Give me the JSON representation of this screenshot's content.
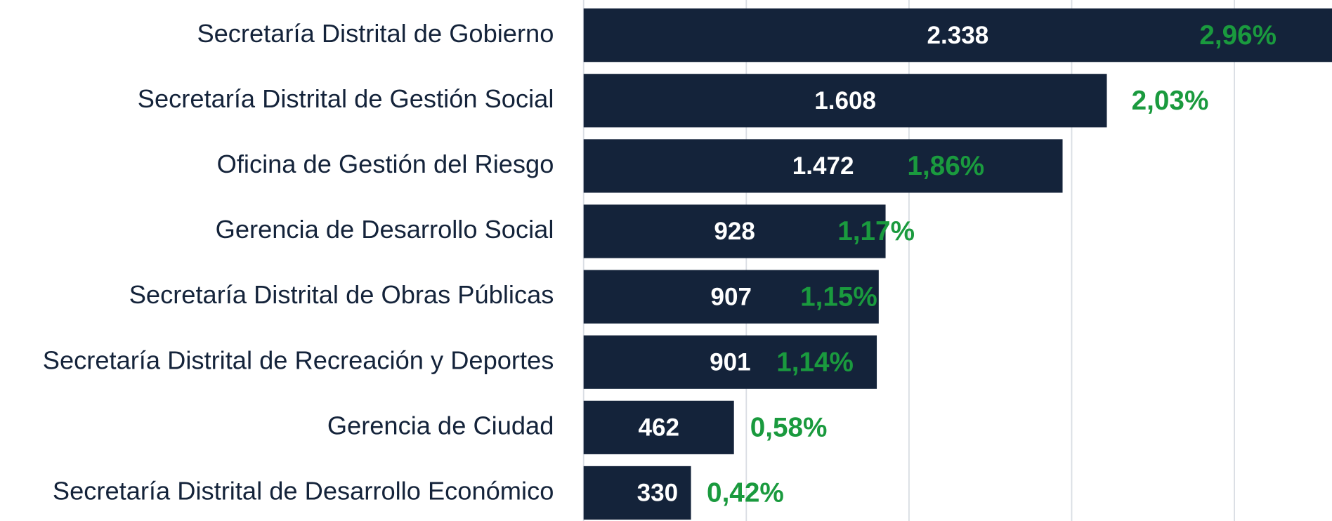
{
  "chart_data": {
    "type": "bar",
    "orientation": "horizontal",
    "categories": [
      "Secretaría Distrital de Gobierno",
      "Secretaría Distrital de Gestión Social",
      "Oficina de Gestión del Riesgo",
      "Gerencia de Desarrollo Social",
      "Secretaría Distrital de Obras Públicas",
      "Secretaría Distrital de Recreación y Deportes",
      "Gerencia de Ciudad",
      "Secretaría Distrital de Desarrollo Económico"
    ],
    "values": [
      2338,
      1608,
      1472,
      928,
      907,
      901,
      462,
      330
    ],
    "value_labels": [
      "2.338",
      "1.608",
      "1.472",
      "928",
      "907",
      "901",
      "462",
      "330"
    ],
    "percentages": [
      2.96,
      2.03,
      1.86,
      1.17,
      1.15,
      1.14,
      0.58,
      0.42
    ],
    "percentage_labels": [
      "2,96%",
      "2,03%",
      "1,86%",
      "1,17%",
      "1,15%",
      "1,14%",
      "0,58%",
      "0,42%"
    ],
    "color": "#14233a",
    "percentage_color": "#1a9a3e",
    "xlim": [
      0,
      2300
    ],
    "xticks": [
      0,
      500,
      1000,
      1500,
      2000
    ],
    "grid": true
  }
}
